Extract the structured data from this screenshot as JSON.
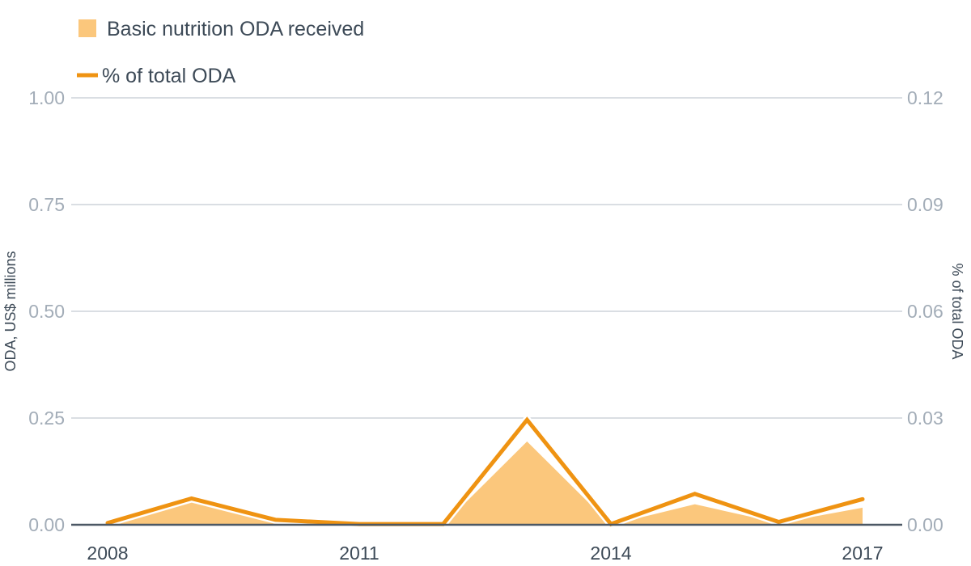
{
  "legend": {
    "area_label": "Basic nutrition ODA received",
    "line_label": "% of total ODA"
  },
  "axes": {
    "left_title": "ODA, US$ millions",
    "right_title": "% of total ODA",
    "left_ticks": [
      "0.00",
      "0.25",
      "0.50",
      "0.75",
      "1.00"
    ],
    "right_ticks": [
      "0.00",
      "0.03",
      "0.06",
      "0.09",
      "0.12"
    ],
    "x_ticks": [
      "2008",
      "2011",
      "2014",
      "2017"
    ]
  },
  "colors": {
    "area": "#fbc77c",
    "line": "#ef9312",
    "grid": "#cdd3da",
    "baseline": "#4c5865"
  },
  "chart_data": {
    "type": "area",
    "x": [
      2008,
      2009,
      2010,
      2011,
      2012,
      2013,
      2014,
      2015,
      2016,
      2017
    ],
    "x_range": [
      2008,
      2017
    ],
    "series": [
      {
        "name": "Basic nutrition ODA received",
        "type": "area",
        "axis": "left",
        "values": [
          0.0,
          0.06,
          0.01,
          0.0,
          0.0,
          0.195,
          0.0,
          0.048,
          0.004,
          0.04
        ]
      },
      {
        "name": "% of total ODA",
        "type": "line",
        "axis": "right",
        "values": [
          0.0005,
          0.0074,
          0.0014,
          0.0002,
          0.0002,
          0.0295,
          0.0002,
          0.0087,
          0.0008,
          0.0072
        ]
      }
    ],
    "ylabel": "ODA, US$ millions",
    "ylabel_right": "% of total ODA",
    "ylim": [
      0,
      1.0
    ],
    "ylim_right": [
      0,
      0.12
    ],
    "grid": true,
    "legend_position": "top-left"
  }
}
